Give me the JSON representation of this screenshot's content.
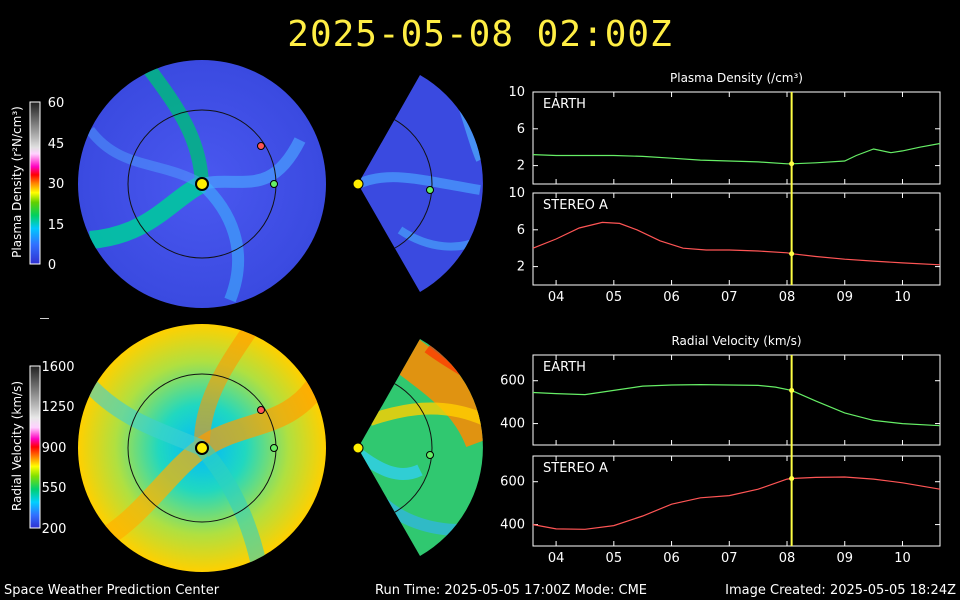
{
  "header": {
    "timestamp": "2025-05-08  02:00Z"
  },
  "footer": {
    "left": "Space Weather Prediction Center",
    "middle": "Run Time: 2025-05-05 17:00Z  Mode: CME",
    "right": "Image Created: 2025-05-05 18:24Z"
  },
  "colorbars": {
    "density": {
      "title": "Plasma Density (r²N/cm³)",
      "ticks": [
        "60",
        "45",
        "30",
        "15",
        "0"
      ]
    },
    "velocity": {
      "title": "Radial Velocity (km/s)",
      "ticks": [
        "1600",
        "1250",
        "900",
        "550",
        "200"
      ]
    }
  },
  "colors": {
    "earth": "#66ee66",
    "stereo_a": "#ff5555",
    "time_marker": "#ffff44",
    "title_yellow": "#ffee44"
  },
  "chart_data": [
    {
      "type": "line",
      "title": "Plasma Density (/cm³)",
      "panel": "EARTH",
      "xlabel": "",
      "ylabel": "",
      "x_tick_labels": [
        "04",
        "05",
        "06",
        "07",
        "08",
        "09",
        "10"
      ],
      "xlim": [
        3.6,
        10.65
      ],
      "ylim": [
        0,
        10
      ],
      "y_tick_labels": [
        "10",
        "6",
        "2"
      ],
      "y_ticks": [
        10,
        6,
        2
      ],
      "marker_x": 8.08,
      "grid": false,
      "series": [
        {
          "color": "#66ee66",
          "x": [
            3.6,
            4.0,
            4.5,
            5.0,
            5.5,
            6.0,
            6.5,
            7.0,
            7.5,
            8.0,
            8.08,
            8.5,
            9.0,
            9.2,
            9.5,
            9.8,
            10.0,
            10.3,
            10.65
          ],
          "y": [
            3.2,
            3.1,
            3.1,
            3.1,
            3.0,
            2.8,
            2.6,
            2.5,
            2.4,
            2.2,
            2.2,
            2.3,
            2.5,
            3.1,
            3.8,
            3.4,
            3.6,
            4.0,
            4.4
          ]
        }
      ]
    },
    {
      "type": "line",
      "panel": "STEREO A",
      "x_tick_labels": [
        "04",
        "05",
        "06",
        "07",
        "08",
        "09",
        "10"
      ],
      "xlim": [
        3.6,
        10.65
      ],
      "ylim": [
        0,
        10
      ],
      "y_tick_labels": [
        "10",
        "6",
        "2"
      ],
      "y_ticks": [
        10,
        6,
        2
      ],
      "marker_x": 8.08,
      "grid": false,
      "series": [
        {
          "color": "#ff5555",
          "x": [
            3.6,
            4.0,
            4.4,
            4.8,
            5.1,
            5.4,
            5.8,
            6.2,
            6.6,
            7.0,
            7.5,
            8.0,
            8.08,
            8.5,
            9.0,
            9.5,
            10.0,
            10.65
          ],
          "y": [
            4.0,
            5.0,
            6.2,
            6.8,
            6.7,
            6.0,
            4.8,
            4.0,
            3.8,
            3.8,
            3.7,
            3.5,
            3.4,
            3.1,
            2.8,
            2.6,
            2.4,
            2.2
          ]
        }
      ]
    },
    {
      "type": "line",
      "title": "Radial Velocity (km/s)",
      "panel": "EARTH",
      "x_tick_labels": [
        "04",
        "05",
        "06",
        "07",
        "08",
        "09",
        "10"
      ],
      "xlim": [
        3.6,
        10.65
      ],
      "ylim": [
        300,
        720
      ],
      "y_tick_labels": [
        "600",
        "400"
      ],
      "y_ticks": [
        600,
        400
      ],
      "marker_x": 8.08,
      "grid": false,
      "series": [
        {
          "color": "#66ee66",
          "x": [
            3.6,
            4.0,
            4.5,
            5.0,
            5.5,
            6.0,
            6.5,
            7.0,
            7.5,
            7.8,
            8.08,
            8.5,
            9.0,
            9.5,
            10.0,
            10.65
          ],
          "y": [
            545,
            540,
            535,
            555,
            575,
            580,
            582,
            580,
            578,
            570,
            555,
            505,
            450,
            415,
            400,
            390
          ]
        }
      ]
    },
    {
      "type": "line",
      "panel": "STEREO A",
      "x_tick_labels": [
        "04",
        "05",
        "06",
        "07",
        "08",
        "09",
        "10"
      ],
      "xlim": [
        3.6,
        10.65
      ],
      "ylim": [
        300,
        720
      ],
      "y_tick_labels": [
        "600",
        "400"
      ],
      "y_ticks": [
        600,
        400
      ],
      "marker_x": 8.08,
      "grid": false,
      "series": [
        {
          "color": "#ff5555",
          "x": [
            3.6,
            4.0,
            4.5,
            5.0,
            5.5,
            6.0,
            6.5,
            7.0,
            7.5,
            8.0,
            8.08,
            8.5,
            9.0,
            9.5,
            10.0,
            10.65
          ],
          "y": [
            400,
            380,
            378,
            395,
            440,
            495,
            525,
            535,
            565,
            612,
            615,
            620,
            622,
            612,
            595,
            565
          ]
        }
      ]
    }
  ]
}
